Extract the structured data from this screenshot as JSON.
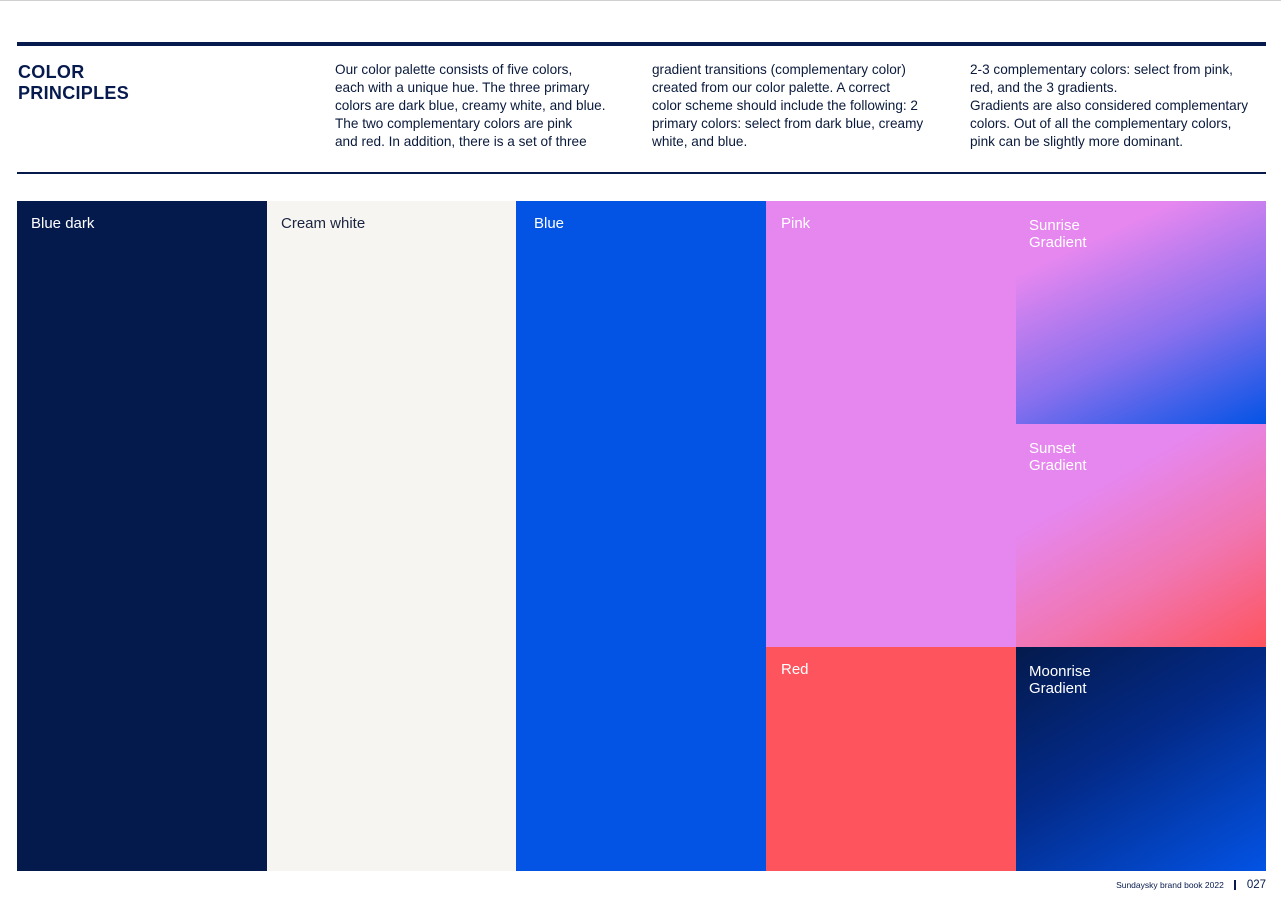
{
  "heading": {
    "line1": "COLOR",
    "line2": "PRINCIPLES"
  },
  "intro": {
    "col1": [
      "Our color palette consists of five colors,",
      "each with a unique hue. The three primary",
      "colors are dark blue, creamy white, and blue.",
      "The two complementary colors are pink",
      "and red. In addition, there is a set of three"
    ],
    "col2": [
      "gradient transitions (complementary color)",
      "created from our color palette. A correct",
      "color scheme should include the following: 2",
      "primary colors: select from dark blue, creamy",
      "white, and blue."
    ],
    "col3": [
      "2-3 complementary colors: select from pink,",
      "red, and the 3 gradients.",
      "Gradients are also considered complementary",
      "colors. Out of all the complementary colors,",
      "pink can be slightly more dominant."
    ]
  },
  "swatches": {
    "blue_dark": {
      "label": "Blue dark",
      "color": "#041a4c"
    },
    "cream_white": {
      "label": "Cream white",
      "color": "#f6f5f1"
    },
    "blue": {
      "label": "Blue",
      "color": "#0353e5"
    },
    "pink": {
      "label": "Pink",
      "color": "#e687ef"
    },
    "red": {
      "label": "Red",
      "color": "#fe545d"
    },
    "sunrise": {
      "label_line1": "Sunrise",
      "label_line2": "Gradient"
    },
    "sunset": {
      "label_line1": "Sunset",
      "label_line2": "Gradient"
    },
    "moonrise": {
      "label_line1": "Moonrise",
      "label_line2": "Gradient"
    }
  },
  "footer": {
    "brand": "Sundaysky brand book 2022",
    "page": "027"
  }
}
